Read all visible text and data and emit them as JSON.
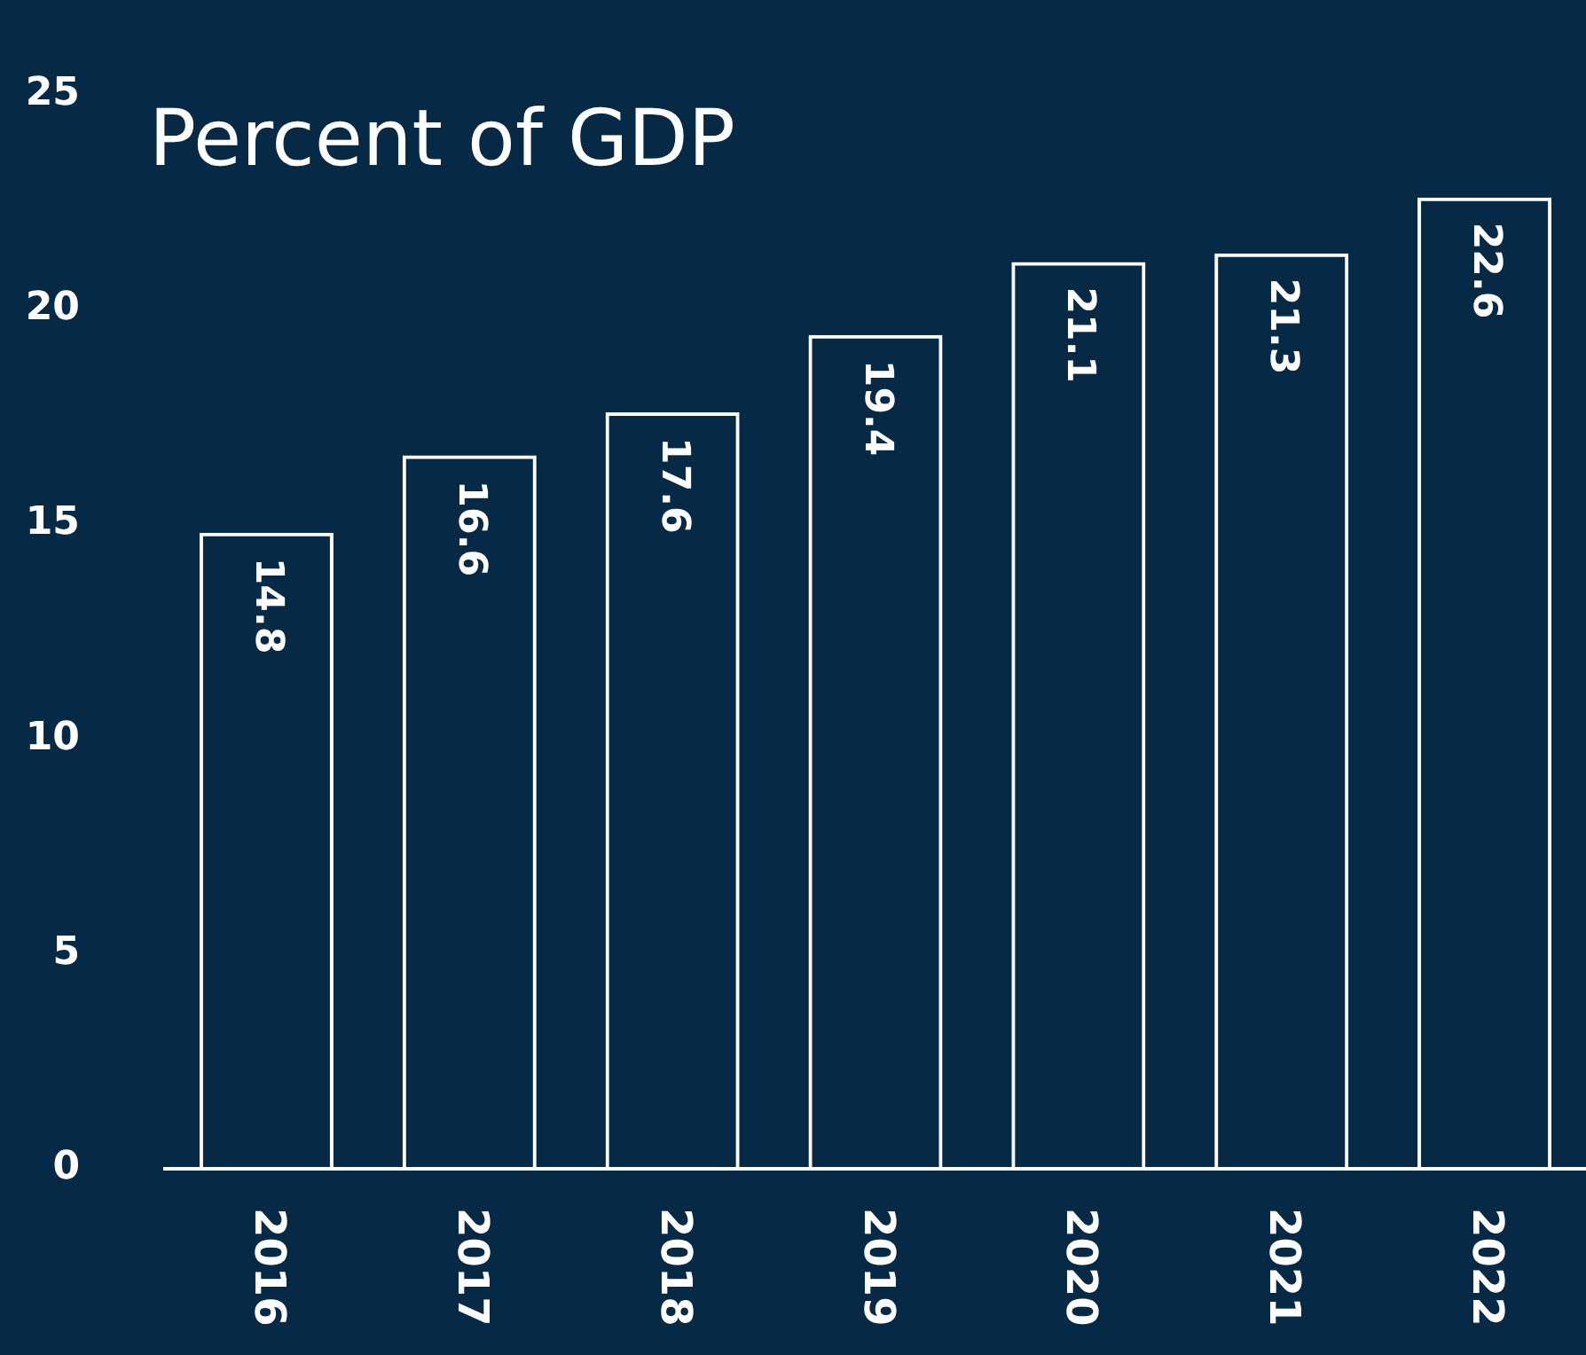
{
  "chart_data": {
    "type": "bar",
    "title": "Percent of GDP",
    "categories": [
      "2016",
      "2017",
      "2018",
      "2019",
      "2020",
      "2021",
      "2022"
    ],
    "values": [
      14.8,
      16.6,
      17.6,
      19.4,
      21.1,
      21.3,
      22.6
    ],
    "color": "#ffffff",
    "ylim": [
      0,
      25
    ],
    "yticks": [
      0,
      5,
      10,
      15,
      20,
      25
    ],
    "grid": false,
    "legend": false,
    "data_labels": true
  }
}
